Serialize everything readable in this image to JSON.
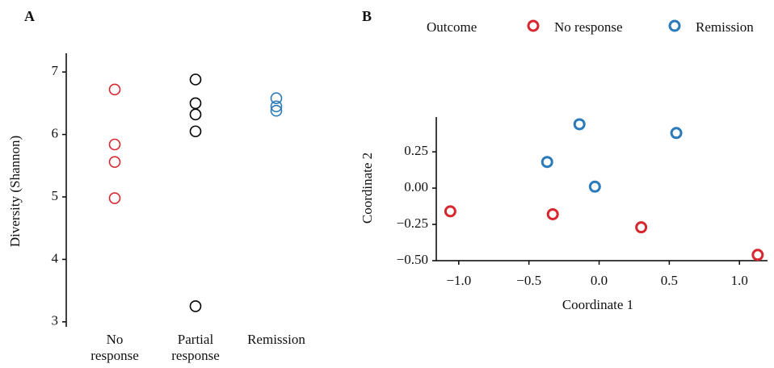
{
  "chart_data": [
    {
      "type": "strip",
      "panel": "A",
      "ylabel": "Diversity (Shannon)",
      "categories": [
        [
          "No",
          "response"
        ],
        [
          "Partial",
          "response"
        ],
        [
          "Remission"
        ]
      ],
      "colors": [
        "#d7282f",
        "#000000",
        "#2b7bba"
      ],
      "values": [
        [
          6.72,
          5.84,
          5.56,
          4.98
        ],
        [
          6.88,
          6.5,
          6.32,
          6.05,
          3.25
        ],
        [
          6.58,
          6.45,
          6.38
        ]
      ],
      "ylim": [
        2.92,
        7.3
      ],
      "yticks": [
        3,
        4,
        5,
        6,
        7
      ]
    },
    {
      "type": "scatter",
      "panel": "B",
      "xlabel": "Coordinate 1",
      "ylabel": "Coordinate 2",
      "legend_title": "Outcome",
      "legend": "top",
      "series": [
        {
          "name": "No response",
          "color": "#d7282f",
          "x": [
            -1.06,
            -0.33,
            0.3,
            1.13
          ],
          "y": [
            -0.16,
            -0.18,
            -0.27,
            -0.46
          ]
        },
        {
          "name": "Remission",
          "color": "#2b7bba",
          "x": [
            -0.37,
            -0.14,
            -0.03,
            0.55
          ],
          "y": [
            0.18,
            0.44,
            0.01,
            0.38
          ]
        }
      ],
      "xlim": [
        -1.16,
        1.2
      ],
      "xticks": [
        {
          "value": -1,
          "label": "−1.0"
        },
        {
          "value": -0.5,
          "label": "−0.5"
        },
        {
          "value": 0,
          "label": "0.0"
        },
        {
          "value": 0.5,
          "label": "0.5"
        },
        {
          "value": 1,
          "label": "1.0"
        }
      ],
      "ylim": [
        -0.5,
        0.49
      ],
      "yticks": [
        {
          "value": -0.5,
          "label": "−0.50"
        },
        {
          "value": -0.25,
          "label": "−0.25"
        },
        {
          "value": 0,
          "label": "0.00"
        },
        {
          "value": 0.25,
          "label": "0.25"
        }
      ]
    }
  ]
}
